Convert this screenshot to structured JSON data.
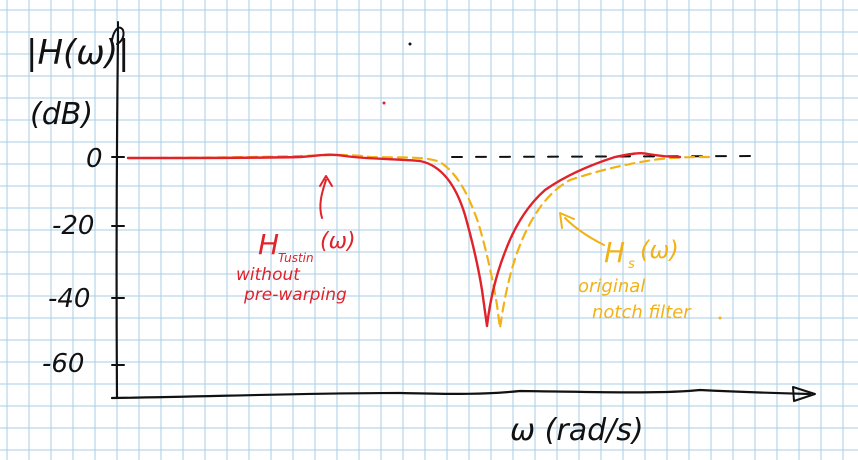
{
  "axes": {
    "y_label_line1": "|H(ω)|",
    "y_label_line2": "(dB)",
    "x_label": "ω (rad/s)",
    "y_ticks": [
      "0",
      "-20",
      "-40",
      "-60"
    ]
  },
  "annotations": {
    "tustin_main": "H",
    "tustin_sub": "Tustin",
    "tustin_arg": "(ω)",
    "tustin_line1": "without",
    "tustin_line2": "pre-warping",
    "original_main": "H",
    "original_sub": "s",
    "original_arg": "(ω)",
    "original_line1": "original",
    "original_line2": "notch filter"
  },
  "colors": {
    "ink": "#111111",
    "grid": "#a9cde6",
    "tustin": "#e0222b",
    "original": "#f2b216"
  }
}
